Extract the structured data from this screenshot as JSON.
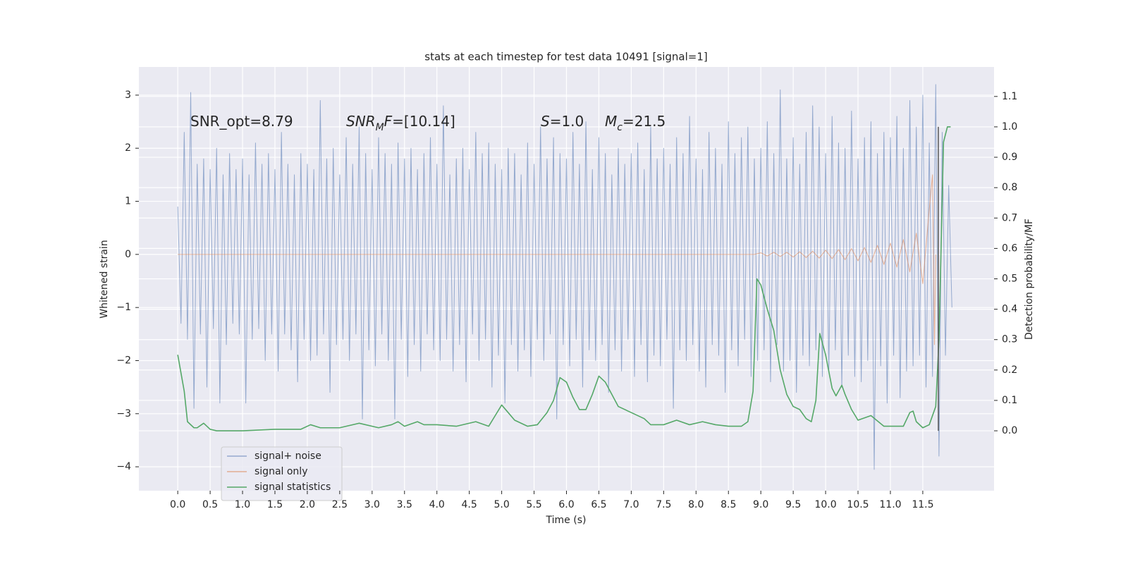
{
  "chart_data": {
    "type": "line",
    "title": "stats at each timestep for test data 10491 [signal=1]",
    "xlabel": "Time (s)",
    "ylabel": "Whitened strain",
    "y2label": "Detection probability/MF",
    "xlim": [
      -0.6,
      12.6
    ],
    "ylim": [
      -4.45,
      3.53
    ],
    "y2lim": [
      -0.197,
      1.197
    ],
    "xticks": [
      {
        "value": 0,
        "label": "0.0"
      },
      0.5,
      {
        "value": 1,
        "label": "1.0"
      },
      1.5,
      {
        "value": 2,
        "label": "2.0"
      },
      2.5,
      {
        "value": 3,
        "label": "3.0"
      },
      3.5,
      {
        "value": 4,
        "label": "4.0"
      },
      4.5,
      {
        "value": 5,
        "label": "5.0"
      },
      5.5,
      {
        "value": 6,
        "label": "6.0"
      },
      6.5,
      {
        "value": 7,
        "label": "7.0"
      },
      7.5,
      {
        "value": 8,
        "label": "8.0"
      },
      8.5,
      {
        "value": 9,
        "label": "9.0"
      },
      9.5,
      {
        "value": 10,
        "label": "10.0"
      },
      10.5,
      {
        "value": 11,
        "label": "11.0"
      },
      11.5
    ],
    "yticks": [
      {
        "value": -4,
        "label": "−4"
      },
      {
        "value": -3,
        "label": "−3"
      },
      {
        "value": -2,
        "label": "−2"
      },
      {
        "value": -1,
        "label": "−1"
      },
      0,
      1,
      2,
      3
    ],
    "y2ticks": [
      {
        "value": 0,
        "label": "0.0"
      },
      0.1,
      0.2,
      0.3,
      0.4,
      0.5,
      0.6,
      0.7,
      0.8,
      0.9,
      {
        "value": 1,
        "label": "1.0"
      },
      1.1
    ],
    "grid": true,
    "legend": "lower left",
    "series": [
      {
        "name": "signal+ noise",
        "color": "#4c72b0",
        "axis": "y",
        "x": [
          0,
          0.05,
          0.1,
          0.15,
          0.2,
          0.25,
          0.3,
          0.35,
          0.4,
          0.45,
          0.5,
          0.55,
          0.6,
          0.65,
          0.7,
          0.75,
          0.8,
          0.85,
          0.9,
          0.95,
          1,
          1.05,
          1.1,
          1.15,
          1.2,
          1.25,
          1.3,
          1.35,
          1.4,
          1.45,
          1.5,
          1.55,
          1.6,
          1.65,
          1.7,
          1.75,
          1.8,
          1.85,
          1.9,
          1.95,
          2,
          2.05,
          2.1,
          2.15,
          2.2,
          2.25,
          2.3,
          2.35,
          2.4,
          2.45,
          2.5,
          2.55,
          2.6,
          2.65,
          2.7,
          2.75,
          2.8,
          2.85,
          2.9,
          2.95,
          3,
          3.05,
          3.1,
          3.15,
          3.2,
          3.25,
          3.3,
          3.35,
          3.4,
          3.45,
          3.5,
          3.55,
          3.6,
          3.65,
          3.7,
          3.75,
          3.8,
          3.85,
          3.9,
          3.95,
          4,
          4.05,
          4.1,
          4.15,
          4.2,
          4.25,
          4.3,
          4.35,
          4.4,
          4.45,
          4.5,
          4.55,
          4.6,
          4.65,
          4.7,
          4.75,
          4.8,
          4.85,
          4.9,
          4.95,
          5,
          5.05,
          5.1,
          5.15,
          5.2,
          5.25,
          5.3,
          5.35,
          5.4,
          5.45,
          5.5,
          5.55,
          5.6,
          5.65,
          5.7,
          5.75,
          5.8,
          5.85,
          5.9,
          5.95,
          6,
          6.05,
          6.1,
          6.15,
          6.2,
          6.25,
          6.3,
          6.35,
          6.4,
          6.45,
          6.5,
          6.55,
          6.6,
          6.65,
          6.7,
          6.75,
          6.8,
          6.85,
          6.9,
          6.95,
          7,
          7.05,
          7.1,
          7.15,
          7.2,
          7.25,
          7.3,
          7.35,
          7.4,
          7.45,
          7.5,
          7.55,
          7.6,
          7.65,
          7.7,
          7.75,
          7.8,
          7.85,
          7.9,
          7.95,
          8,
          8.05,
          8.1,
          8.15,
          8.2,
          8.25,
          8.3,
          8.35,
          8.4,
          8.45,
          8.5,
          8.55,
          8.6,
          8.65,
          8.7,
          8.75,
          8.8,
          8.85,
          8.9,
          8.95,
          9,
          9.05,
          9.1,
          9.15,
          9.2,
          9.25,
          9.3,
          9.35,
          9.4,
          9.45,
          9.5,
          9.55,
          9.6,
          9.65,
          9.7,
          9.75,
          9.8,
          9.85,
          9.9,
          9.95,
          10,
          10.05,
          10.1,
          10.15,
          10.2,
          10.25,
          10.3,
          10.35,
          10.4,
          10.45,
          10.5,
          10.55,
          10.6,
          10.65,
          10.7,
          10.75,
          10.8,
          10.85,
          10.9,
          10.95,
          11,
          11.05,
          11.1,
          11.15,
          11.2,
          11.25,
          11.3,
          11.35,
          11.4,
          11.45,
          11.5,
          11.55,
          11.6,
          11.65,
          11.7,
          11.75,
          11.8,
          11.85,
          11.9,
          11.95
        ],
        "values": [
          0.9,
          -1.3,
          2.3,
          -1.6,
          3.05,
          -2.9,
          1.7,
          -1.5,
          1.8,
          -2.5,
          1.6,
          -1.4,
          2.0,
          -2.8,
          1.5,
          -1.7,
          1.9,
          -1.3,
          1.6,
          -1.5,
          1.8,
          -2.8,
          1.5,
          -1.6,
          2.1,
          -1.4,
          1.7,
          -2.0,
          1.9,
          -1.5,
          1.6,
          -2.2,
          2.3,
          -1.5,
          1.7,
          -1.8,
          1.5,
          -2.4,
          1.9,
          -1.6,
          1.7,
          -2.0,
          1.6,
          -1.9,
          2.9,
          -1.5,
          1.8,
          -2.6,
          2.0,
          -1.7,
          1.5,
          -1.6,
          2.2,
          -2.0,
          1.7,
          -1.5,
          2.4,
          -3.1,
          1.9,
          -1.8,
          1.6,
          -2.1,
          2.2,
          -1.5,
          1.9,
          -2.0,
          1.7,
          -3.1,
          2.1,
          -1.6,
          1.8,
          -2.3,
          2.0,
          -1.7,
          1.6,
          -2.2,
          1.9,
          -1.5,
          2.2,
          -1.8,
          1.7,
          -2.0,
          2.8,
          -1.6,
          1.5,
          -2.2,
          1.8,
          -1.7,
          2.0,
          -2.4,
          1.6,
          -1.5,
          2.3,
          -2.0,
          1.9,
          -1.6,
          2.1,
          -2.5,
          1.7,
          -1.9,
          1.6,
          -2.8,
          2.0,
          -1.7,
          1.9,
          -2.2,
          1.5,
          -1.8,
          2.1,
          -2.3,
          1.7,
          -1.6,
          2.4,
          -2.0,
          1.8,
          -1.5,
          2.2,
          -3.1,
          1.9,
          -1.7,
          1.8,
          -2.1,
          2.3,
          -1.6,
          1.7,
          -2.5,
          2.5,
          -1.8,
          1.6,
          -2.0,
          2.2,
          -1.7,
          1.9,
          -2.6,
          1.5,
          -1.8,
          2.0,
          -2.2,
          1.7,
          -1.6,
          1.9,
          -2.3,
          2.1,
          -1.7,
          1.6,
          -2.4,
          2.4,
          -1.9,
          1.8,
          -2.1,
          2.0,
          -1.6,
          1.7,
          -2.9,
          2.2,
          -1.8,
          1.9,
          -2.0,
          2.6,
          -1.7,
          1.8,
          -2.2,
          1.6,
          -2.5,
          2.3,
          -1.7,
          2.0,
          -1.9,
          1.7,
          -2.6,
          2.5,
          -1.8,
          1.9,
          -2.1,
          2.2,
          -1.6,
          2.4,
          -2.3,
          1.8,
          -2.0,
          2.0,
          -1.8,
          2.5,
          -2.4,
          1.9,
          -1.7,
          3.1,
          -2.2,
          1.8,
          -2.0,
          2.2,
          -2.6,
          1.7,
          -1.9,
          2.3,
          -2.1,
          2.8,
          -1.8,
          2.4,
          -2.3,
          1.9,
          -2.2,
          2.6,
          -1.8,
          2.1,
          -2.5,
          2.0,
          -1.9,
          2.7,
          -2.3,
          1.8,
          -2.4,
          2.2,
          -2.0,
          2.5,
          -4.05,
          1.9,
          -2.1,
          2.3,
          -2.8,
          2.2,
          -1.9,
          2.6,
          -2.7,
          2.0,
          -2.2,
          2.9,
          -2.1,
          2.4,
          -1.9,
          3.0,
          -2.5,
          2.1,
          -2.3,
          3.2,
          -3.8,
          2.3,
          -1.9,
          1.3,
          -1.0
        ]
      },
      {
        "name": "signal only",
        "color": "#dd8452",
        "axis": "y",
        "x": [
          0,
          8.9,
          9.0,
          9.1,
          9.2,
          9.3,
          9.4,
          9.5,
          9.6,
          9.7,
          9.8,
          9.9,
          10.0,
          10.1,
          10.2,
          10.3,
          10.4,
          10.5,
          10.6,
          10.7,
          10.8,
          10.9,
          11.0,
          11.1,
          11.2,
          11.3,
          11.4,
          11.5,
          11.6,
          11.65,
          11.68,
          11.7
        ],
        "values": [
          0,
          0,
          0.03,
          -0.03,
          0.04,
          -0.04,
          0.04,
          -0.05,
          0.05,
          -0.06,
          0.06,
          -0.07,
          0.08,
          -0.08,
          0.09,
          -0.1,
          0.11,
          -0.12,
          0.13,
          -0.15,
          0.17,
          -0.19,
          0.21,
          -0.24,
          0.28,
          -0.33,
          0.4,
          -0.55,
          0.85,
          1.5,
          -1.7,
          0
        ]
      },
      {
        "name": "signal statistics",
        "color": "#55a868",
        "axis": "y2",
        "x": [
          0,
          0.1,
          0.15,
          0.25,
          0.3,
          0.4,
          0.5,
          0.6,
          1.0,
          1.5,
          1.9,
          2.05,
          2.2,
          2.5,
          2.8,
          3.1,
          3.3,
          3.4,
          3.5,
          3.7,
          3.8,
          4.0,
          4.3,
          4.6,
          4.8,
          4.9,
          5.0,
          5.1,
          5.2,
          5.4,
          5.55,
          5.7,
          5.8,
          5.9,
          6.0,
          6.1,
          6.2,
          6.3,
          6.4,
          6.5,
          6.6,
          6.7,
          6.8,
          7.0,
          7.2,
          7.3,
          7.5,
          7.7,
          7.9,
          8.1,
          8.3,
          8.5,
          8.7,
          8.8,
          8.88,
          8.94,
          9.0,
          9.1,
          9.2,
          9.3,
          9.4,
          9.5,
          9.6,
          9.7,
          9.78,
          9.85,
          9.91,
          10.0,
          10.1,
          10.16,
          10.25,
          10.3,
          10.4,
          10.5,
          10.7,
          10.9,
          11.2,
          11.3,
          11.35,
          11.4,
          11.5,
          11.6,
          11.7,
          11.75,
          11.82,
          11.88,
          11.93
        ],
        "values": [
          0.25,
          0.13,
          0.03,
          0.01,
          0.01,
          0.025,
          0.005,
          0,
          0,
          0.005,
          0.005,
          0.02,
          0.01,
          0.01,
          0.025,
          0.01,
          0.02,
          0.03,
          0.015,
          0.03,
          0.02,
          0.02,
          0.015,
          0.03,
          0.015,
          0.05,
          0.085,
          0.06,
          0.035,
          0.015,
          0.02,
          0.06,
          0.1,
          0.175,
          0.16,
          0.11,
          0.07,
          0.07,
          0.12,
          0.18,
          0.16,
          0.12,
          0.08,
          0.06,
          0.04,
          0.02,
          0.02,
          0.035,
          0.02,
          0.03,
          0.02,
          0.015,
          0.015,
          0.03,
          0.13,
          0.5,
          0.48,
          0.4,
          0.33,
          0.2,
          0.12,
          0.08,
          0.07,
          0.04,
          0.03,
          0.1,
          0.32,
          0.25,
          0.14,
          0.115,
          0.15,
          0.12,
          0.07,
          0.035,
          0.05,
          0.015,
          0.015,
          0.06,
          0.065,
          0.03,
          0.01,
          0.02,
          0.08,
          0.3,
          0.95,
          1.0,
          1.0
        ]
      }
    ],
    "vlines": [
      {
        "x": 11.74,
        "ymin": 0,
        "ymax": 1.0,
        "color": "#555555",
        "axis": "y2"
      }
    ],
    "annotations": [
      {
        "segments": [
          {
            "text": "SNR_opt=8.79",
            "style": "normal"
          }
        ]
      },
      {
        "segments": [
          {
            "text": "SNR",
            "style": "italic"
          },
          {
            "text": "M",
            "style": "italic-sub"
          },
          {
            "text": "F",
            "style": "italic"
          },
          {
            "text": "=[10.14]",
            "style": "normal"
          }
        ]
      },
      {
        "segments": [
          {
            "text": "S",
            "style": "italic"
          },
          {
            "text": "=1.0",
            "style": "normal"
          }
        ]
      },
      {
        "segments": [
          {
            "text": "M",
            "style": "italic"
          },
          {
            "text": "c",
            "style": "italic-sub"
          },
          {
            "text": "=21.5",
            "style": "normal"
          }
        ]
      }
    ]
  }
}
